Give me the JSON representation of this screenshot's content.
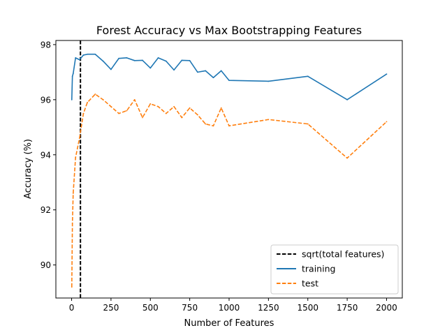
{
  "chart_data": {
    "type": "line",
    "title": "Forest Accuracy vs Max Bootstrapping Features",
    "xlabel": "Number of Features",
    "ylabel": "Accuracy (%)",
    "xlim": [
      -100,
      2100
    ],
    "ylim": [
      88.8,
      98.15
    ],
    "xticks": [
      0,
      250,
      500,
      750,
      1000,
      1250,
      1500,
      1750,
      2000
    ],
    "yticks": [
      90,
      92,
      94,
      96,
      98
    ],
    "grid": false,
    "legend_position": "lower-right",
    "vline": {
      "x": 56,
      "label": "sqrt(total features)",
      "color": "#000000",
      "style": "dashed"
    },
    "series": [
      {
        "name": "training",
        "color": "#1f77b4",
        "style": "solid",
        "x": [
          1,
          5,
          10,
          25,
          50,
          75,
          100,
          150,
          200,
          250,
          300,
          350,
          400,
          450,
          500,
          550,
          600,
          650,
          700,
          750,
          800,
          850,
          900,
          950,
          1000,
          1250,
          1500,
          1750,
          2000
        ],
        "y": [
          96.0,
          96.85,
          96.95,
          97.52,
          97.45,
          97.62,
          97.65,
          97.65,
          97.4,
          97.1,
          97.5,
          97.52,
          97.42,
          97.43,
          97.15,
          97.52,
          97.4,
          97.08,
          97.43,
          97.42,
          97.0,
          97.05,
          96.8,
          97.05,
          96.7,
          96.67,
          96.85,
          96.0,
          96.93
        ]
      },
      {
        "name": "test",
        "color": "#ff7f0e",
        "style": "dashed",
        "x": [
          1,
          5,
          10,
          25,
          50,
          75,
          100,
          150,
          200,
          250,
          300,
          350,
          400,
          450,
          500,
          550,
          600,
          650,
          700,
          750,
          800,
          850,
          900,
          950,
          1000,
          1250,
          1500,
          1750,
          2000
        ],
        "y": [
          89.2,
          91.5,
          92.6,
          93.9,
          94.6,
          95.5,
          95.9,
          96.2,
          96.0,
          95.75,
          95.5,
          95.6,
          96.0,
          95.35,
          95.85,
          95.75,
          95.5,
          95.75,
          95.35,
          95.7,
          95.45,
          95.12,
          95.05,
          95.7,
          95.05,
          95.28,
          95.12,
          93.88,
          95.2
        ]
      }
    ]
  }
}
